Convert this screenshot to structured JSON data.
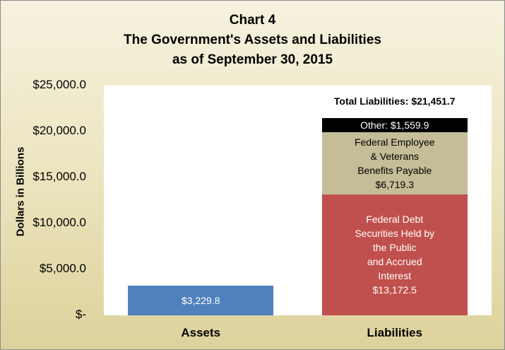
{
  "chart_data": {
    "type": "bar",
    "stacked": true,
    "title_lines": [
      "Chart 4",
      "The Government's Assets and Liabilities",
      "as of September 30, 2015"
    ],
    "ylabel": "Dollars in Billions",
    "ylim": [
      0,
      25000
    ],
    "yticks": [
      "$-",
      "$5,000.0",
      "$10,000.0",
      "$15,000.0",
      "$20,000.0",
      "$25,000.0"
    ],
    "grid": false,
    "categories": [
      "Assets",
      "Liabilities"
    ],
    "bars": [
      {
        "category": "Assets",
        "segments": [
          {
            "value": 3229.8,
            "label": "$3,229.8",
            "color": "#4f81bd",
            "text_color": "#ffffff"
          }
        ]
      },
      {
        "category": "Liabilities",
        "segments": [
          {
            "value": 13172.5,
            "label": "Federal Debt\nSecurities Held by\nthe Public\nand Accrued\nInterest\n$13,172.5",
            "color": "#c0504d",
            "text_color": "#ffffff"
          },
          {
            "value": 6719.3,
            "label": "Federal Employee\n& Veterans\nBenefits Payable\n$6,719.3",
            "color": "#c4bd97",
            "text_color": "#000000"
          },
          {
            "value": 1559.9,
            "label": "Other:  $1,559.9",
            "color": "#000000",
            "text_color": "#ffffff"
          }
        ],
        "total_label": "Total Liabilities:  $21,451.7"
      }
    ]
  }
}
